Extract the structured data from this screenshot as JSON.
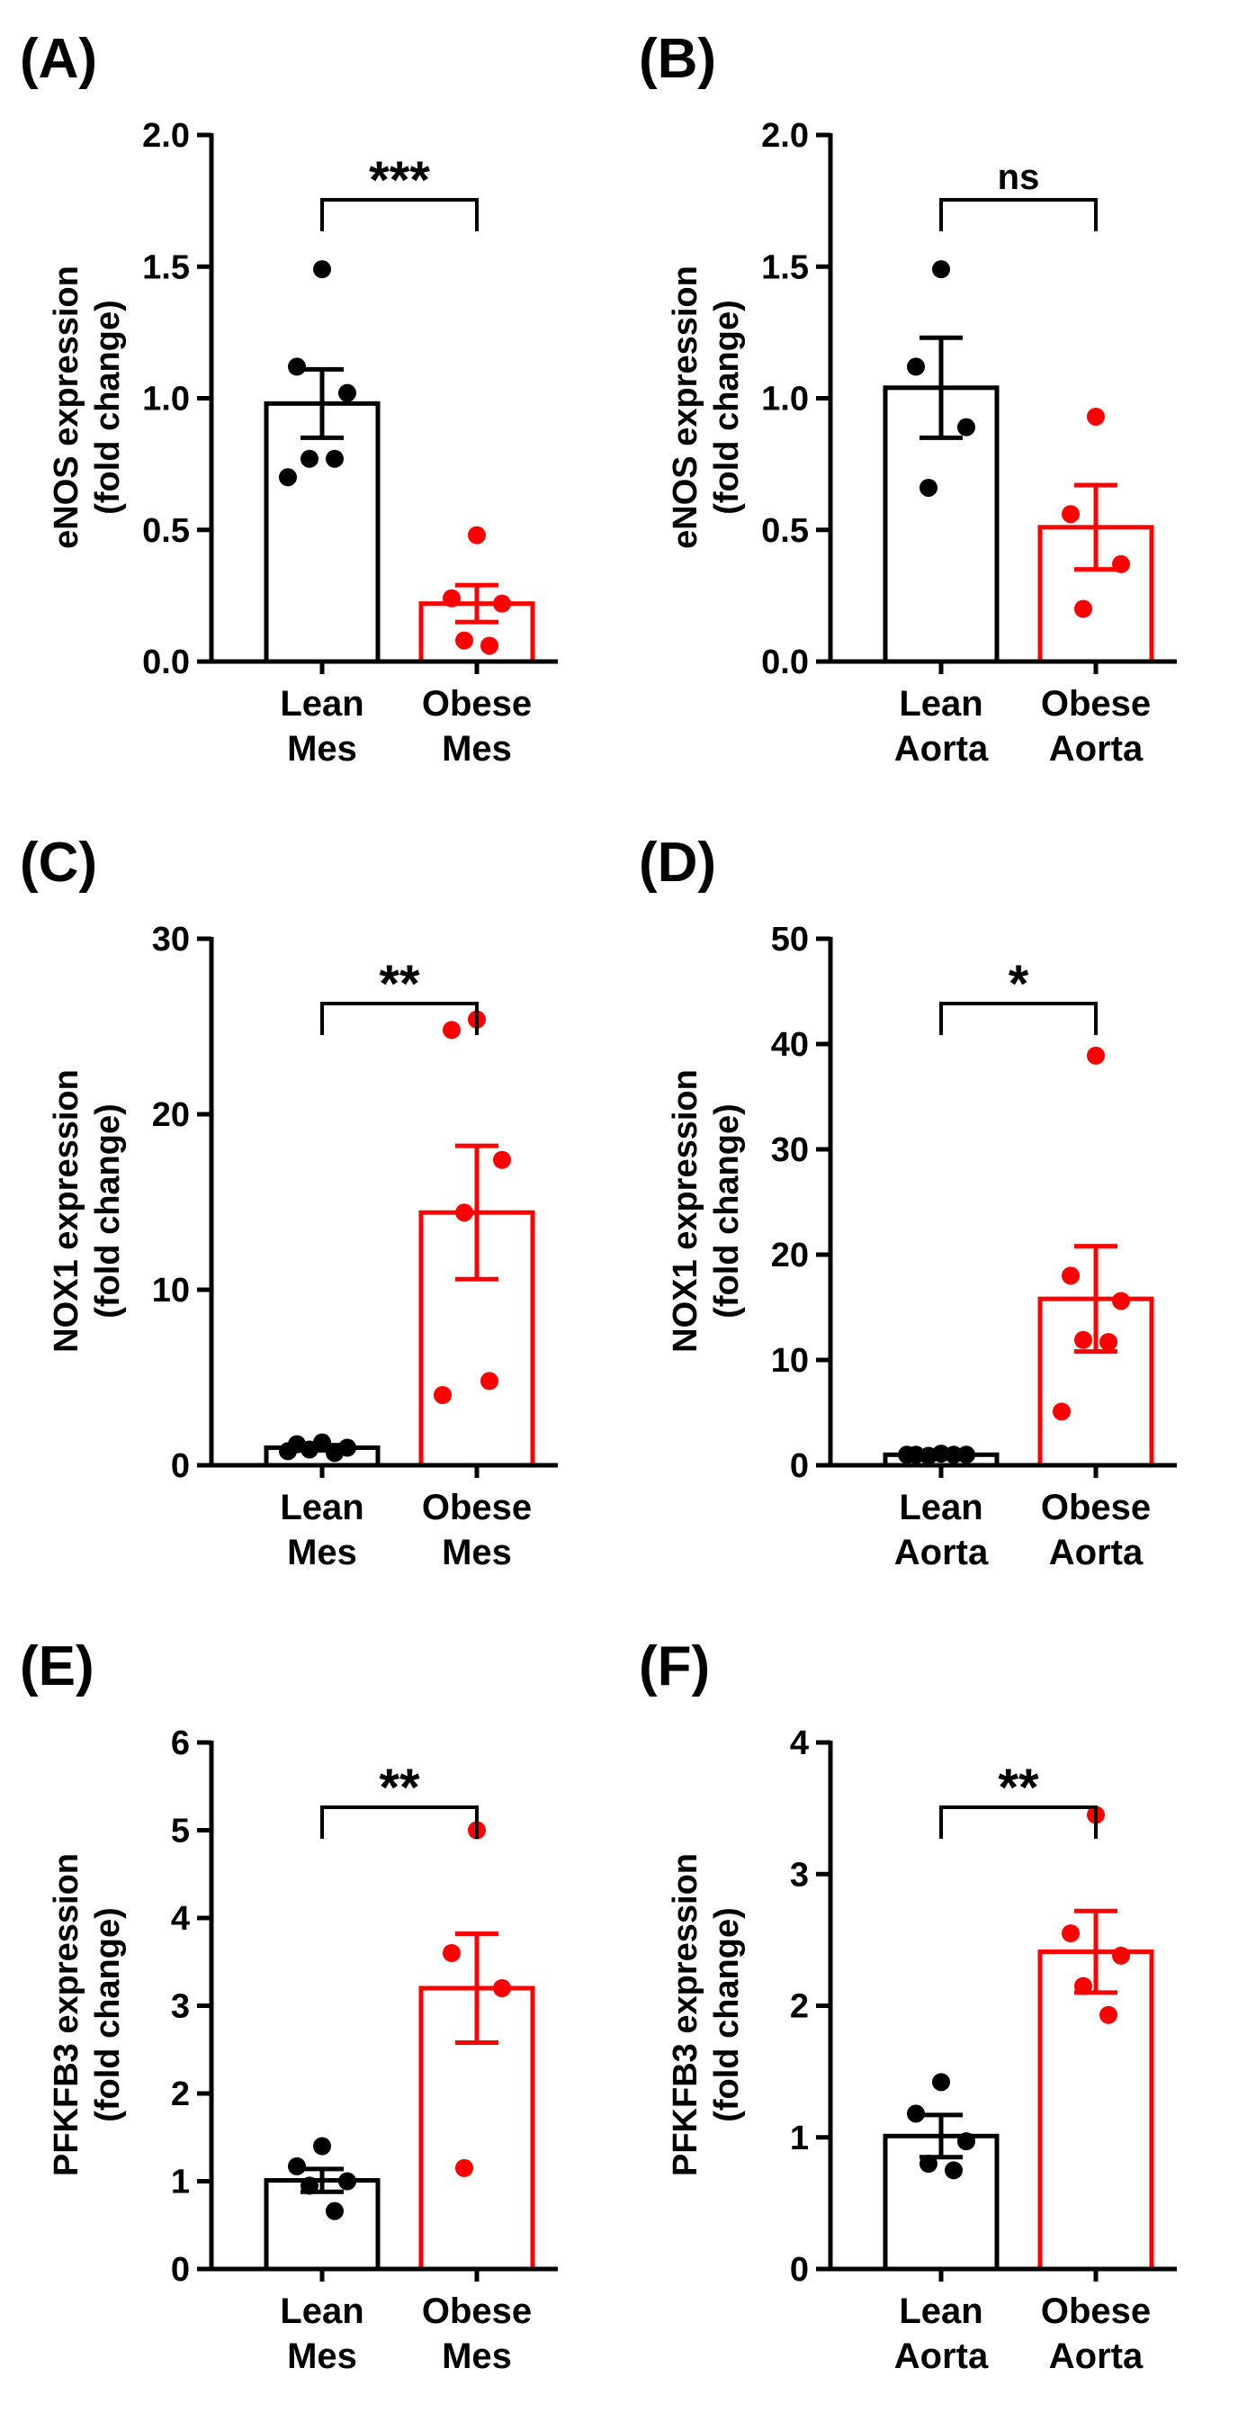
{
  "colors": {
    "lean": "#000000",
    "obese": "#ff0000"
  },
  "chart_data": [
    {
      "type": "bar",
      "panel": "(A)",
      "ylabel": [
        "eNOS expression",
        "(fold change)"
      ],
      "ylim": [
        0,
        2.0
      ],
      "ticks": [
        0,
        0.5,
        1.0,
        1.5,
        2.0
      ],
      "tick_labels": [
        "0.0",
        "0.5",
        "1.0",
        "1.5",
        "2.0"
      ],
      "significance": "***",
      "groups": [
        {
          "label": [
            "Lean",
            "Mes"
          ],
          "color": "#000000",
          "mean": 0.98,
          "sem": 0.13,
          "points": [
            1.49,
            1.12,
            1.02,
            0.77,
            0.77,
            0.7
          ]
        },
        {
          "label": [
            "Obese",
            "Mes"
          ],
          "color": "#ff0000",
          "mean": 0.22,
          "sem": 0.07,
          "points": [
            0.48,
            0.24,
            0.22,
            0.08,
            0.06
          ]
        }
      ]
    },
    {
      "type": "bar",
      "panel": "(B)",
      "ylabel": [
        "eNOS expression",
        "(fold change)"
      ],
      "ylim": [
        0,
        2.0
      ],
      "ticks": [
        0,
        0.5,
        1.0,
        1.5,
        2.0
      ],
      "tick_labels": [
        "0.0",
        "0.5",
        "1.0",
        "1.5",
        "2.0"
      ],
      "significance": "ns",
      "groups": [
        {
          "label": [
            "Lean",
            "Aorta"
          ],
          "color": "#000000",
          "mean": 1.04,
          "sem": 0.19,
          "points": [
            1.49,
            1.12,
            0.89,
            0.66
          ]
        },
        {
          "label": [
            "Obese",
            "Aorta"
          ],
          "color": "#ff0000",
          "mean": 0.51,
          "sem": 0.16,
          "points": [
            0.93,
            0.56,
            0.37,
            0.2
          ]
        }
      ]
    },
    {
      "type": "bar",
      "panel": "(C)",
      "ylabel": [
        "NOX1 expression",
        "(fold change)"
      ],
      "ylim": [
        0,
        30
      ],
      "ticks": [
        0,
        10,
        20,
        30
      ],
      "tick_labels": [
        "0",
        "10",
        "20",
        "30"
      ],
      "significance": "**",
      "groups": [
        {
          "label": [
            "Lean",
            "Mes"
          ],
          "color": "#000000",
          "mean": 1.0,
          "sem": 0.15,
          "points": [
            1.3,
            1.2,
            1.0,
            0.9,
            0.7,
            0.8
          ]
        },
        {
          "label": [
            "Obese",
            "Mes"
          ],
          "color": "#ff0000",
          "mean": 14.4,
          "sem": 3.8,
          "points": [
            25.4,
            24.8,
            17.4,
            14.4,
            4.8,
            4.0
          ]
        }
      ]
    },
    {
      "type": "bar",
      "panel": "(D)",
      "ylabel": [
        "NOX1 expression",
        "(fold change)"
      ],
      "ylim": [
        0,
        50
      ],
      "ticks": [
        0,
        10,
        20,
        30,
        40,
        50
      ],
      "tick_labels": [
        "0",
        "10",
        "20",
        "30",
        "40",
        "50"
      ],
      "significance": "*",
      "groups": [
        {
          "label": [
            "Lean",
            "Aorta"
          ],
          "color": "#000000",
          "mean": 1.0,
          "sem": 0.1,
          "points": [
            1.1,
            1.0,
            1.0,
            0.9,
            1.0,
            1.0
          ]
        },
        {
          "label": [
            "Obese",
            "Aorta"
          ],
          "color": "#ff0000",
          "mean": 15.8,
          "sem": 5.0,
          "points": [
            38.9,
            18.0,
            15.6,
            11.9,
            11.7,
            5.1
          ]
        }
      ]
    },
    {
      "type": "bar",
      "panel": "(E)",
      "ylabel": [
        "PFKFB3 expression",
        "(fold change)"
      ],
      "ylim": [
        0,
        6
      ],
      "ticks": [
        0,
        1,
        2,
        3,
        4,
        5,
        6
      ],
      "tick_labels": [
        "0",
        "1",
        "2",
        "3",
        "4",
        "5",
        "6"
      ],
      "significance": "**",
      "groups": [
        {
          "label": [
            "Lean",
            "Mes"
          ],
          "color": "#000000",
          "mean": 1.01,
          "sem": 0.13,
          "points": [
            1.4,
            1.17,
            1.0,
            0.95,
            0.66
          ]
        },
        {
          "label": [
            "Obese",
            "Mes"
          ],
          "color": "#ff0000",
          "mean": 3.2,
          "sem": 0.62,
          "points": [
            5.0,
            3.6,
            3.2,
            1.15
          ]
        }
      ]
    },
    {
      "type": "bar",
      "panel": "(F)",
      "ylabel": [
        "PFKFB3 expression",
        "(fold change)"
      ],
      "ylim": [
        0,
        4
      ],
      "ticks": [
        0,
        1,
        2,
        3,
        4
      ],
      "tick_labels": [
        "0",
        "1",
        "2",
        "3",
        "4"
      ],
      "significance": "**",
      "groups": [
        {
          "label": [
            "Lean",
            "Aorta"
          ],
          "color": "#000000",
          "mean": 1.01,
          "sem": 0.16,
          "points": [
            1.42,
            1.18,
            0.97,
            0.8,
            0.75
          ]
        },
        {
          "label": [
            "Obese",
            "Aorta"
          ],
          "color": "#ff0000",
          "mean": 2.41,
          "sem": 0.31,
          "points": [
            3.45,
            2.55,
            2.38,
            2.15,
            1.93
          ]
        }
      ]
    }
  ]
}
